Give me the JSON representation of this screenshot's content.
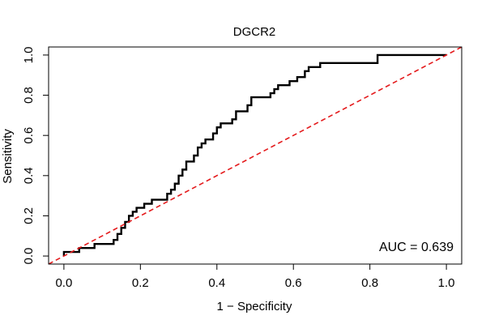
{
  "chart_data": {
    "type": "line",
    "title": "DGCR2",
    "xlabel": "1 − Specificity",
    "ylabel": "Sensitivity",
    "xlim": [
      -0.04,
      1.04
    ],
    "ylim": [
      -0.04,
      1.04
    ],
    "xticks": [
      0.0,
      0.2,
      0.4,
      0.6,
      0.8,
      1.0
    ],
    "xtick_labels": [
      "0.0",
      "0.2",
      "0.4",
      "0.6",
      "0.8",
      "1.0"
    ],
    "yticks": [
      0.0,
      0.2,
      0.4,
      0.6,
      0.8,
      1.0
    ],
    "ytick_labels": [
      "0.0",
      "0.2",
      "0.4",
      "0.6",
      "0.8",
      "1.0"
    ],
    "grid": false,
    "annotation": "AUC = 0.639",
    "series": [
      {
        "color": "#000000",
        "style": "solid-step",
        "points": [
          [
            0.0,
            0.0
          ],
          [
            0.0,
            0.02
          ],
          [
            0.04,
            0.02
          ],
          [
            0.04,
            0.04
          ],
          [
            0.08,
            0.04
          ],
          [
            0.08,
            0.06
          ],
          [
            0.13,
            0.06
          ],
          [
            0.13,
            0.08
          ],
          [
            0.14,
            0.08
          ],
          [
            0.14,
            0.11
          ],
          [
            0.15,
            0.11
          ],
          [
            0.15,
            0.14
          ],
          [
            0.16,
            0.14
          ],
          [
            0.16,
            0.17
          ],
          [
            0.17,
            0.17
          ],
          [
            0.17,
            0.2
          ],
          [
            0.18,
            0.2
          ],
          [
            0.18,
            0.22
          ],
          [
            0.19,
            0.22
          ],
          [
            0.19,
            0.24
          ],
          [
            0.21,
            0.24
          ],
          [
            0.21,
            0.26
          ],
          [
            0.23,
            0.26
          ],
          [
            0.23,
            0.28
          ],
          [
            0.27,
            0.28
          ],
          [
            0.27,
            0.31
          ],
          [
            0.28,
            0.31
          ],
          [
            0.28,
            0.33
          ],
          [
            0.29,
            0.33
          ],
          [
            0.29,
            0.36
          ],
          [
            0.3,
            0.36
          ],
          [
            0.3,
            0.4
          ],
          [
            0.31,
            0.4
          ],
          [
            0.31,
            0.43
          ],
          [
            0.32,
            0.43
          ],
          [
            0.32,
            0.47
          ],
          [
            0.34,
            0.47
          ],
          [
            0.34,
            0.5
          ],
          [
            0.35,
            0.5
          ],
          [
            0.35,
            0.54
          ],
          [
            0.36,
            0.54
          ],
          [
            0.36,
            0.56
          ],
          [
            0.37,
            0.56
          ],
          [
            0.37,
            0.58
          ],
          [
            0.39,
            0.58
          ],
          [
            0.39,
            0.61
          ],
          [
            0.4,
            0.61
          ],
          [
            0.4,
            0.64
          ],
          [
            0.41,
            0.64
          ],
          [
            0.41,
            0.66
          ],
          [
            0.44,
            0.66
          ],
          [
            0.44,
            0.68
          ],
          [
            0.45,
            0.68
          ],
          [
            0.45,
            0.72
          ],
          [
            0.48,
            0.72
          ],
          [
            0.48,
            0.75
          ],
          [
            0.49,
            0.75
          ],
          [
            0.49,
            0.79
          ],
          [
            0.54,
            0.79
          ],
          [
            0.54,
            0.81
          ],
          [
            0.55,
            0.81
          ],
          [
            0.55,
            0.83
          ],
          [
            0.56,
            0.83
          ],
          [
            0.56,
            0.85
          ],
          [
            0.59,
            0.85
          ],
          [
            0.59,
            0.87
          ],
          [
            0.61,
            0.87
          ],
          [
            0.61,
            0.89
          ],
          [
            0.63,
            0.89
          ],
          [
            0.63,
            0.92
          ],
          [
            0.64,
            0.92
          ],
          [
            0.64,
            0.94
          ],
          [
            0.67,
            0.94
          ],
          [
            0.67,
            0.96
          ],
          [
            0.82,
            0.96
          ],
          [
            0.82,
            1.0
          ],
          [
            1.0,
            1.0
          ]
        ]
      },
      {
        "color": "#e41a1c",
        "style": "dashed",
        "points": [
          [
            -0.04,
            -0.04
          ],
          [
            1.04,
            1.04
          ]
        ]
      }
    ]
  }
}
